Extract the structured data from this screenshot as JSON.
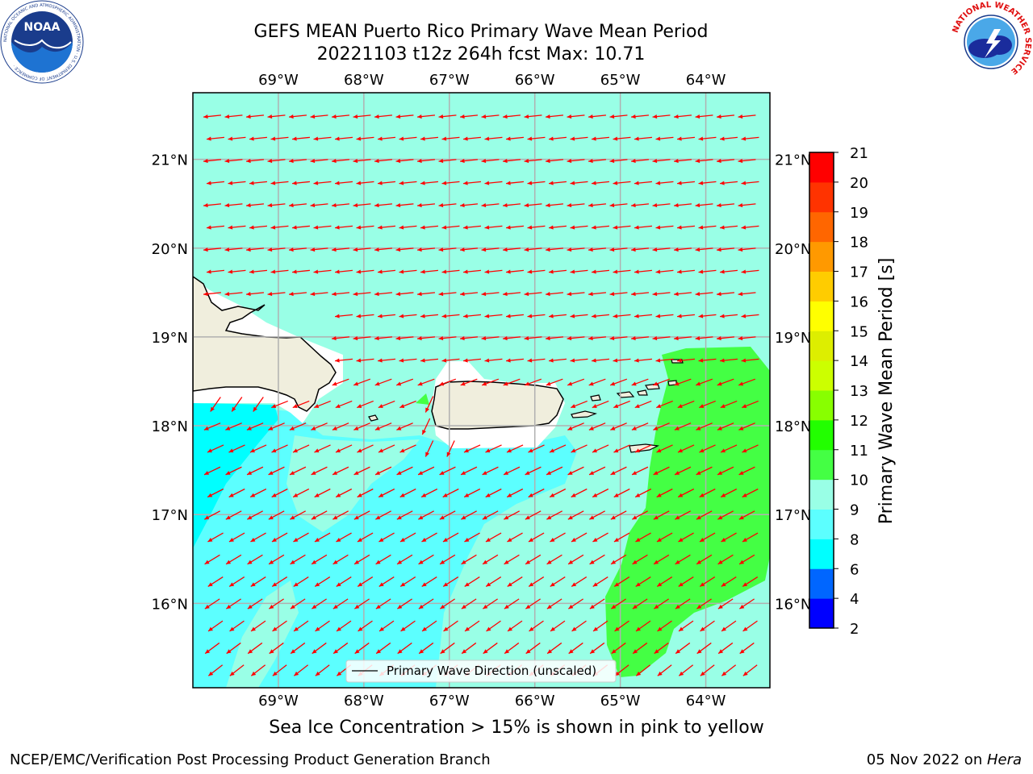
{
  "title": {
    "line1": "GEFS MEAN Puerto Rico Primary Wave Mean Period",
    "line2": "20221103 t12z 264h fcst   Max: 10.71"
  },
  "logos": {
    "noaa_text": "NOAA",
    "noaa_ring": "NATIONAL OCEANIC AND ATMOSPHERIC ADMINISTRATION · U.S. DEPARTMENT OF COMMERCE ·",
    "nws_ring": "NATIONAL WEATHER SERVICE"
  },
  "map": {
    "lon_range": [
      -70.0,
      -63.25
    ],
    "lat_range": [
      15.05,
      21.75
    ],
    "lon_ticks": [
      {
        "value": -69,
        "label": "69°W"
      },
      {
        "value": -68,
        "label": "68°W"
      },
      {
        "value": -67,
        "label": "67°W"
      },
      {
        "value": -66,
        "label": "66°W"
      },
      {
        "value": -65,
        "label": "65°W"
      },
      {
        "value": -64,
        "label": "64°W"
      }
    ],
    "lat_ticks": [
      {
        "value": 16,
        "label": "16°N"
      },
      {
        "value": 17,
        "label": "17°N"
      },
      {
        "value": 18,
        "label": "18°N"
      },
      {
        "value": 19,
        "label": "19°N"
      },
      {
        "value": 20,
        "label": "20°N"
      },
      {
        "value": 21,
        "label": "21°N"
      }
    ],
    "arrow_color": "#ff0000",
    "land_color": "#f0eedd",
    "legend_label": "Primary Wave Direction (unscaled)"
  },
  "colorbar": {
    "label": "Primary Wave Mean Period [s]",
    "levels": [
      2,
      4,
      6,
      8,
      9,
      10,
      11,
      12,
      13,
      14,
      15,
      16,
      17,
      18,
      19,
      20,
      21
    ],
    "colors": [
      "#0000ff",
      "#0066ff",
      "#00ffff",
      "#5cffff",
      "#99ffe6",
      "#44ff44",
      "#22ff00",
      "#88ff00",
      "#ccff00",
      "#ddee00",
      "#ffff00",
      "#ffcc00",
      "#ff9900",
      "#ff6600",
      "#ff3300",
      "#ff0000"
    ]
  },
  "footer": {
    "note": "Sea Ice Concentration > 15% is shown in pink to yellow",
    "left": "NCEP/EMC/Verification Post Processing Product Generation Branch",
    "date": "05 Nov 2022 on ",
    "host": "Hera"
  }
}
